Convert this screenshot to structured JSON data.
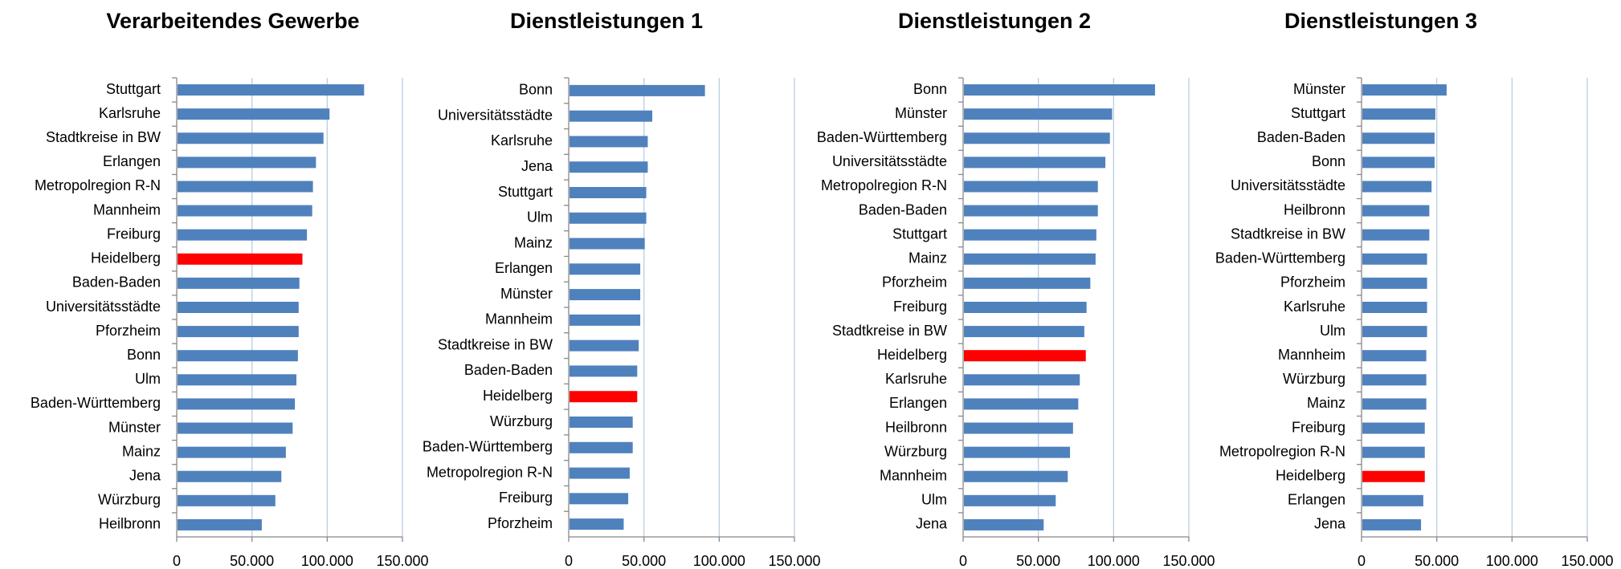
{
  "chart_data": [
    {
      "type": "bar",
      "orientation": "horizontal",
      "title": "Verarbeitendes Gewerbe",
      "categories": [
        "Stuttgart",
        "Karlsruhe",
        "Stadtkreise in BW",
        "Erlangen",
        "Metropolregion R-N",
        "Mannheim",
        "Freiburg",
        "Heidelberg",
        "Baden-Baden",
        "Universitätsstädte",
        "Pforzheim",
        "Bonn",
        "Ulm",
        "Baden-Württemberg",
        "Münster",
        "Mainz",
        "Jena",
        "Würzburg",
        "Heilbronn"
      ],
      "values": [
        124000,
        101000,
        97000,
        92000,
        90000,
        89500,
        86000,
        83000,
        81000,
        80500,
        80500,
        80000,
        79000,
        78000,
        76500,
        72000,
        69000,
        65000,
        56000
      ],
      "colors": [
        "#4f81bd",
        "#4f81bd",
        "#4f81bd",
        "#4f81bd",
        "#4f81bd",
        "#4f81bd",
        "#4f81bd",
        "#ff0000",
        "#4f81bd",
        "#4f81bd",
        "#4f81bd",
        "#4f81bd",
        "#4f81bd",
        "#4f81bd",
        "#4f81bd",
        "#4f81bd",
        "#4f81bd",
        "#4f81bd",
        "#4f81bd"
      ],
      "xlim": [
        0,
        150000
      ],
      "xticks": [
        0,
        {
          "value": 50000,
          "label": "50.000"
        },
        {
          "value": 100000,
          "label": "100.000"
        },
        {
          "value": 150000,
          "label": "150.000"
        }
      ],
      "grid": true
    },
    {
      "type": "bar",
      "orientation": "horizontal",
      "title": "Dienstleistungen 1",
      "categories": [
        "Bonn",
        "Universitätsstädte",
        "Karlsruhe",
        "Jena",
        "Stuttgart",
        "Ulm",
        "Mainz",
        "Erlangen",
        "Münster",
        "Mannheim",
        "Stadtkreise in BW",
        "Baden-Baden",
        "Heidelberg",
        "Würzburg",
        "Baden-Württemberg",
        "Metropolregion R-N",
        "Freiburg",
        "Pforzheim"
      ],
      "values": [
        90000,
        55000,
        52000,
        52000,
        51000,
        51000,
        50000,
        47000,
        47000,
        47000,
        46000,
        45000,
        45000,
        42000,
        42000,
        40000,
        39000,
        36000
      ],
      "colors": [
        "#4f81bd",
        "#4f81bd",
        "#4f81bd",
        "#4f81bd",
        "#4f81bd",
        "#4f81bd",
        "#4f81bd",
        "#4f81bd",
        "#4f81bd",
        "#4f81bd",
        "#4f81bd",
        "#4f81bd",
        "#ff0000",
        "#4f81bd",
        "#4f81bd",
        "#4f81bd",
        "#4f81bd",
        "#4f81bd"
      ],
      "xlim": [
        0,
        150000
      ],
      "xticks": [
        0,
        {
          "value": 50000,
          "label": "50.000"
        },
        {
          "value": 100000,
          "label": "100.000"
        },
        {
          "value": 150000,
          "label": "150.000"
        }
      ],
      "grid": true
    },
    {
      "type": "bar",
      "orientation": "horizontal",
      "title": "Dienstleistungen 2",
      "categories": [
        "Bonn",
        "Münster",
        "Baden-Württemberg",
        "Universitätsstädte",
        "Metropolregion R-N",
        "Baden-Baden",
        "Stuttgart",
        "Mainz",
        "Pforzheim",
        "Freiburg",
        "Stadtkreise in BW",
        "Heidelberg",
        "Karlsruhe",
        "Erlangen",
        "Heilbronn",
        "Würzburg",
        "Mannheim",
        "Ulm",
        "Jena"
      ],
      "values": [
        127000,
        98500,
        97000,
        94000,
        89000,
        89000,
        88000,
        87500,
        84000,
        81500,
        80000,
        81000,
        77000,
        76000,
        72500,
        70500,
        69000,
        61000,
        53000
      ],
      "colors": [
        "#4f81bd",
        "#4f81bd",
        "#4f81bd",
        "#4f81bd",
        "#4f81bd",
        "#4f81bd",
        "#4f81bd",
        "#4f81bd",
        "#4f81bd",
        "#4f81bd",
        "#4f81bd",
        "#ff0000",
        "#4f81bd",
        "#4f81bd",
        "#4f81bd",
        "#4f81bd",
        "#4f81bd",
        "#4f81bd",
        "#4f81bd"
      ],
      "xlim": [
        0,
        150000
      ],
      "xticks": [
        0,
        {
          "value": 50000,
          "label": "50.000"
        },
        {
          "value": 100000,
          "label": "100.000"
        },
        {
          "value": 150000,
          "label": "150.000"
        }
      ],
      "grid": true
    },
    {
      "type": "bar",
      "orientation": "horizontal",
      "title": "Dienstleistungen 3",
      "categories": [
        "Münster",
        "Stuttgart",
        "Baden-Baden",
        "Bonn",
        "Universitätsstädte",
        "Heilbronn",
        "Stadtkreise in BW",
        "Baden-Württemberg",
        "Pforzheim",
        "Karlsruhe",
        "Ulm",
        "Mannheim",
        "Würzburg",
        "Mainz",
        "Freiburg",
        "Metropolregion R-N",
        "Heidelberg",
        "Erlangen",
        "Jena"
      ],
      "values": [
        56000,
        48500,
        48000,
        48000,
        46000,
        44500,
        44500,
        43000,
        43000,
        43000,
        43000,
        42500,
        42500,
        42500,
        41500,
        41500,
        41500,
        40500,
        39000
      ],
      "colors": [
        "#4f81bd",
        "#4f81bd",
        "#4f81bd",
        "#4f81bd",
        "#4f81bd",
        "#4f81bd",
        "#4f81bd",
        "#4f81bd",
        "#4f81bd",
        "#4f81bd",
        "#4f81bd",
        "#4f81bd",
        "#4f81bd",
        "#4f81bd",
        "#4f81bd",
        "#4f81bd",
        "#ff0000",
        "#4f81bd",
        "#4f81bd"
      ],
      "xlim": [
        0,
        150000
      ],
      "xticks": [
        0,
        {
          "value": 50000,
          "label": "50.000"
        },
        {
          "value": 100000,
          "label": "100.000"
        },
        {
          "value": 150000,
          "label": "150.000"
        }
      ],
      "grid": true
    }
  ]
}
